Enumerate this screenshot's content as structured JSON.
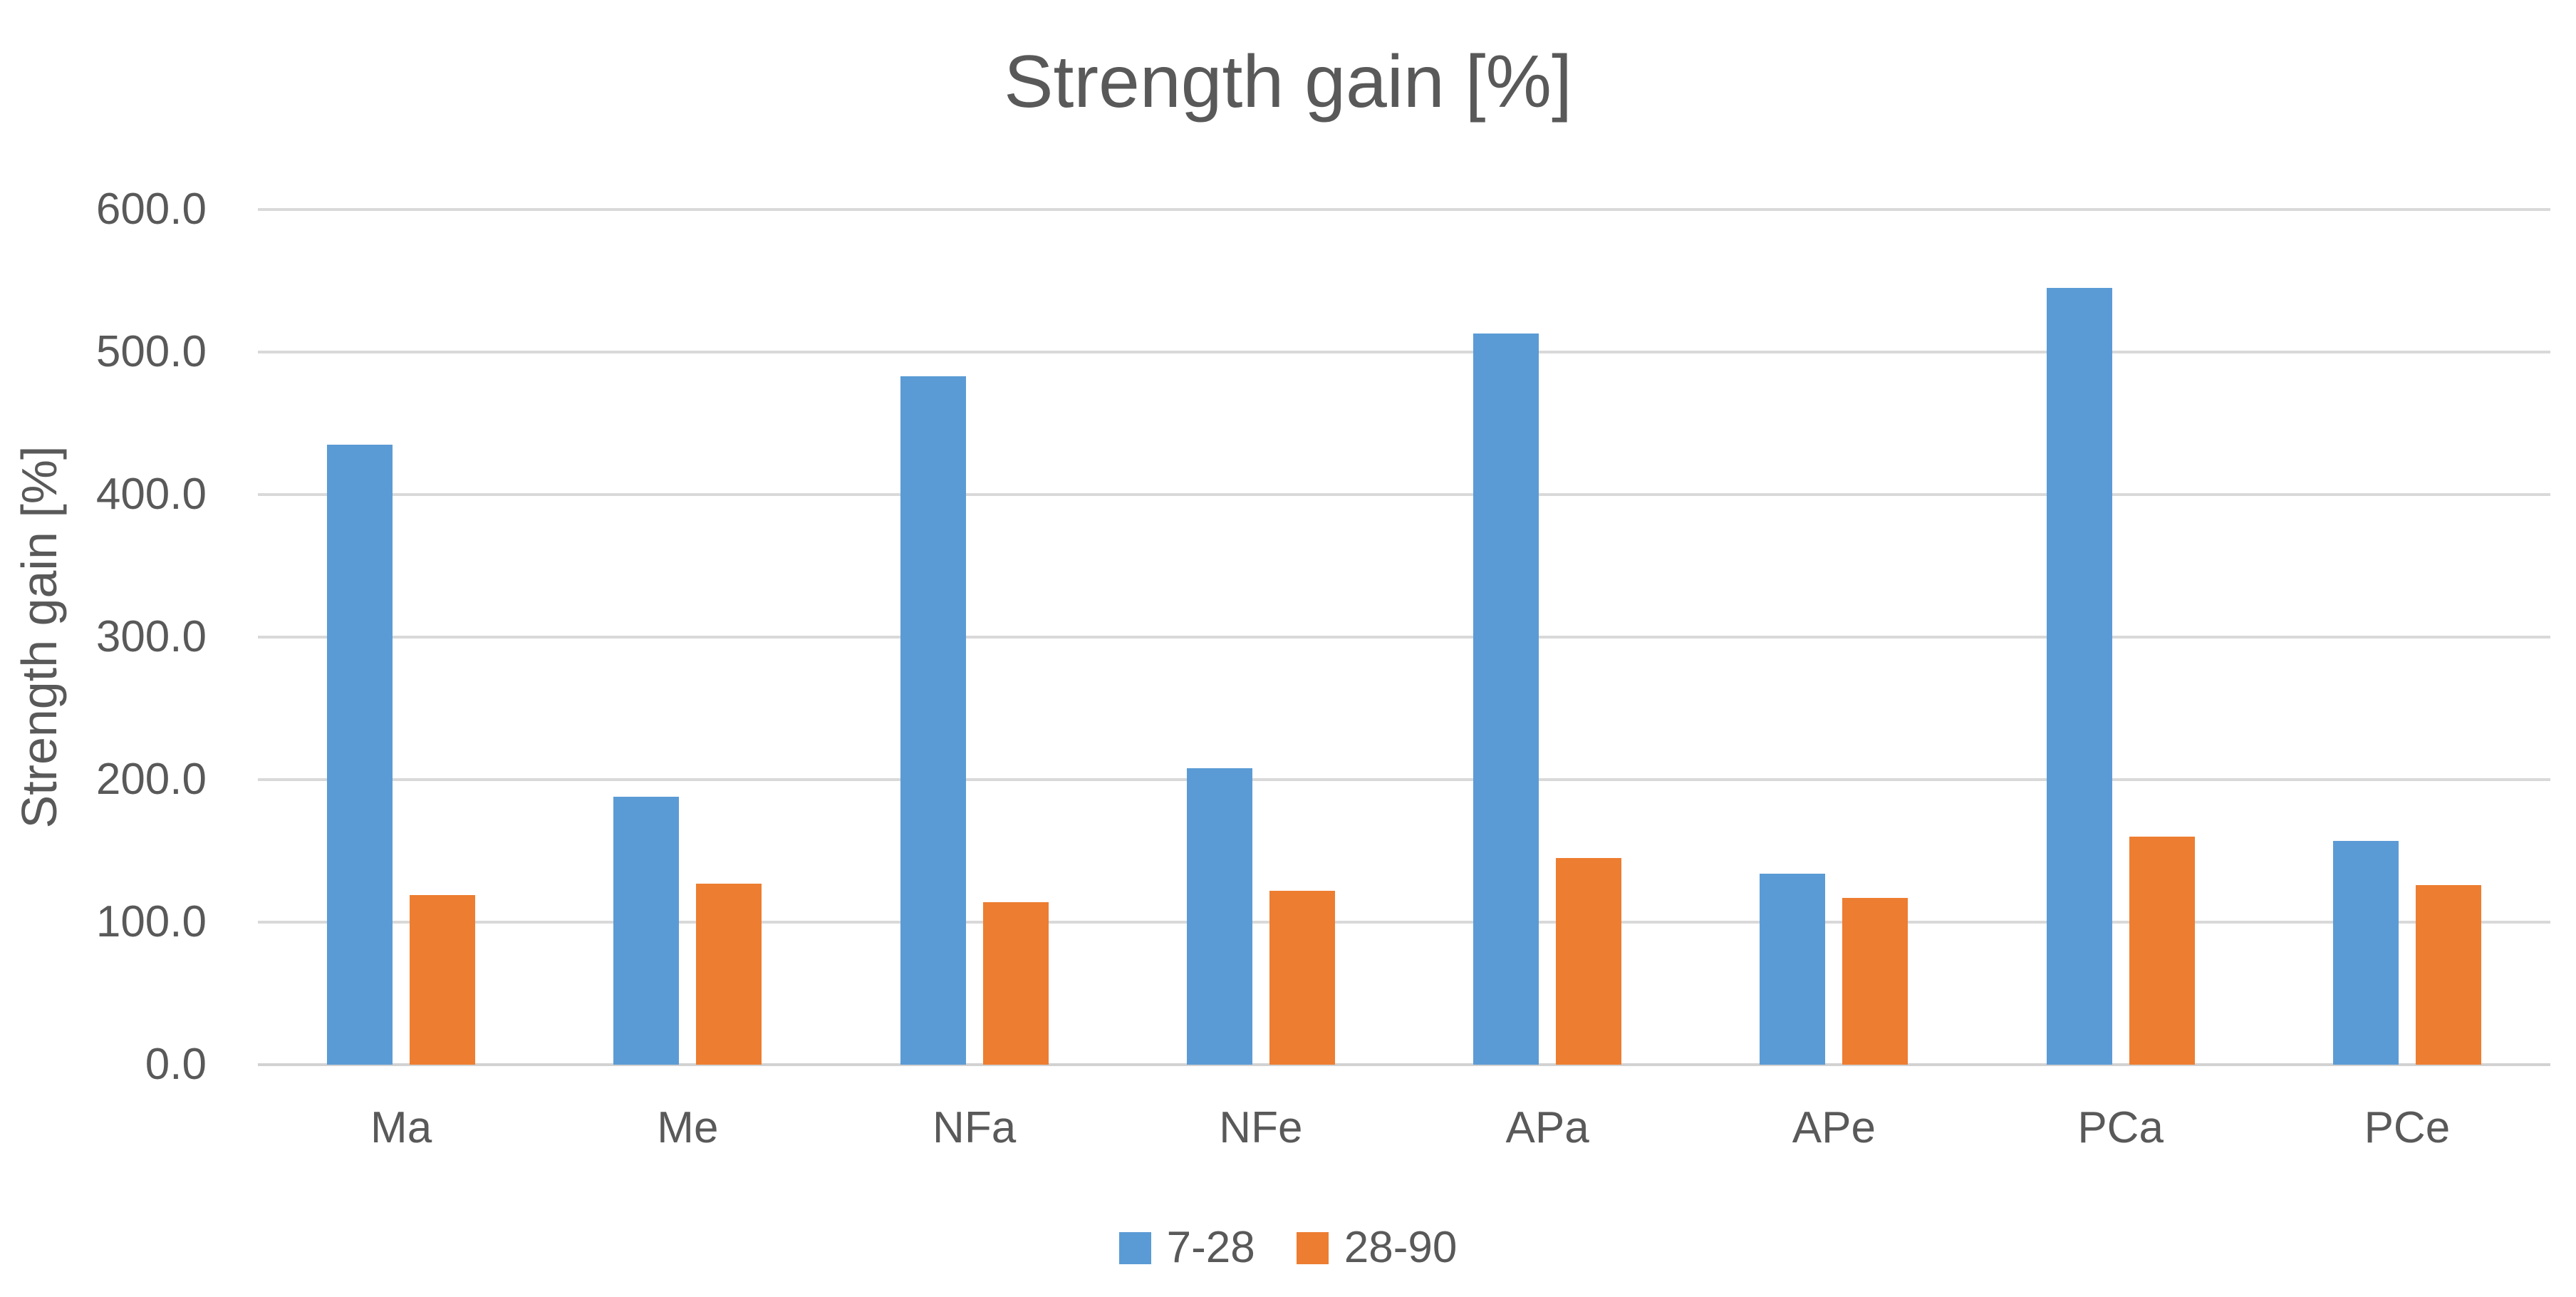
{
  "chart_data": {
    "type": "bar",
    "title": "Strength gain [%]",
    "xlabel": "",
    "ylabel": "Strength gain [%]",
    "categories": [
      "Ma",
      "Me",
      "NFa",
      "NFe",
      "APa",
      "APe",
      "PCa",
      "PCe"
    ],
    "series": [
      {
        "name": "7-28",
        "color": "#5B9BD5",
        "values": [
          435,
          188,
          483,
          208,
          513,
          134,
          545,
          157
        ]
      },
      {
        "name": "28-90",
        "color": "#ED7D31",
        "values": [
          119,
          127,
          114,
          122,
          145,
          117,
          160,
          126
        ]
      }
    ],
    "ylim": [
      0,
      600
    ],
    "ytick_step": 100,
    "ytick_labels": [
      "0.0",
      "100.0",
      "200.0",
      "300.0",
      "400.0",
      "500.0",
      "600.0"
    ],
    "grid": true,
    "legend_position": "bottom"
  },
  "colors": {
    "text": "#595959",
    "gridline": "#D9D9D9",
    "background": "#FFFFFF",
    "series_blue": "#5B9BD5",
    "series_orange": "#ED7D31"
  }
}
